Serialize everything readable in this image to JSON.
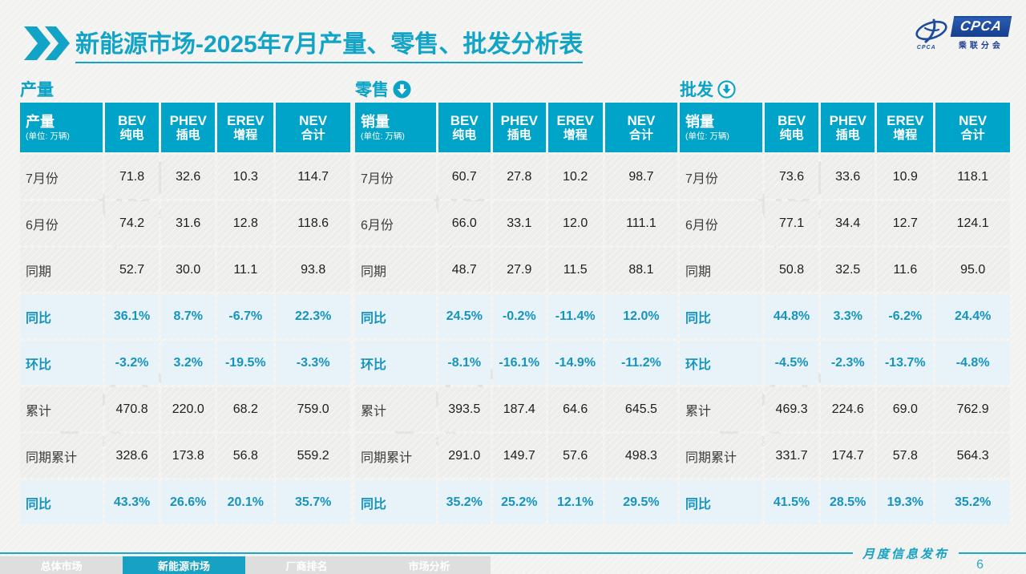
{
  "header": {
    "title_bold": "新能源市场",
    "title_rest": "-2025年7月产量、零售、批发分析表",
    "logo": {
      "emblem_text": "CPCA",
      "box_text": "CPCA",
      "sub_text": "乘联分会"
    }
  },
  "watermark": {
    "big": "CPCA",
    "small": "乘联分会"
  },
  "colors": {
    "accent": "#00a4c8",
    "percent_text": "#1694bd",
    "percent_bg": "#e8f3f9",
    "logo_blue": "#1e4b9c"
  },
  "tables": [
    {
      "section_title": "产量",
      "arrow": "none",
      "first_col": {
        "title": "产量",
        "unit": "(单位: 万辆)"
      },
      "columns": [
        {
          "en": "BEV",
          "cn": "纯电"
        },
        {
          "en": "PHEV",
          "cn": "插电"
        },
        {
          "en": "EREV",
          "cn": "增程"
        },
        {
          "en": "NEV",
          "cn": "合计"
        }
      ],
      "rows": [
        {
          "label": "7月份",
          "type": "value",
          "cells": [
            "71.8",
            "32.6",
            "10.3",
            "114.7"
          ]
        },
        {
          "label": "6月份",
          "type": "value",
          "cells": [
            "74.2",
            "31.6",
            "12.8",
            "118.6"
          ]
        },
        {
          "label": "同期",
          "type": "value",
          "cells": [
            "52.7",
            "30.0",
            "11.1",
            "93.8"
          ]
        },
        {
          "label": "同比",
          "type": "percent",
          "cells": [
            "36.1%",
            "8.7%",
            "-6.7%",
            "22.3%"
          ]
        },
        {
          "label": "环比",
          "type": "percent",
          "cells": [
            "-3.2%",
            "3.2%",
            "-19.5%",
            "-3.3%"
          ]
        },
        {
          "label": "累计",
          "type": "value",
          "cells": [
            "470.8",
            "220.0",
            "68.2",
            "759.0"
          ]
        },
        {
          "label": "同期累计",
          "type": "value",
          "cells": [
            "328.6",
            "173.8",
            "56.8",
            "559.2"
          ]
        },
        {
          "label": "同比",
          "type": "percent",
          "cells": [
            "43.3%",
            "26.6%",
            "20.1%",
            "35.7%"
          ]
        }
      ]
    },
    {
      "section_title": "零售",
      "arrow": "filled",
      "first_col": {
        "title": "销量",
        "unit": "(单位: 万辆)"
      },
      "columns": [
        {
          "en": "BEV",
          "cn": "纯电"
        },
        {
          "en": "PHEV",
          "cn": "插电"
        },
        {
          "en": "EREV",
          "cn": "增程"
        },
        {
          "en": "NEV",
          "cn": "合计"
        }
      ],
      "rows": [
        {
          "label": "7月份",
          "type": "value",
          "cells": [
            "60.7",
            "27.8",
            "10.2",
            "98.7"
          ]
        },
        {
          "label": "6月份",
          "type": "value",
          "cells": [
            "66.0",
            "33.1",
            "12.0",
            "111.1"
          ]
        },
        {
          "label": "同期",
          "type": "value",
          "cells": [
            "48.7",
            "27.9",
            "11.5",
            "88.1"
          ]
        },
        {
          "label": "同比",
          "type": "percent",
          "cells": [
            "24.5%",
            "-0.2%",
            "-11.4%",
            "12.0%"
          ]
        },
        {
          "label": "环比",
          "type": "percent",
          "cells": [
            "-8.1%",
            "-16.1%",
            "-14.9%",
            "-11.2%"
          ]
        },
        {
          "label": "累计",
          "type": "value",
          "cells": [
            "393.5",
            "187.4",
            "64.6",
            "645.5"
          ]
        },
        {
          "label": "同期累计",
          "type": "value",
          "cells": [
            "291.0",
            "149.7",
            "57.6",
            "498.3"
          ]
        },
        {
          "label": "同比",
          "type": "percent",
          "cells": [
            "35.2%",
            "25.2%",
            "12.1%",
            "29.5%"
          ]
        }
      ]
    },
    {
      "section_title": "批发",
      "arrow": "outline",
      "first_col": {
        "title": "销量",
        "unit": "(单位: 万辆)"
      },
      "columns": [
        {
          "en": "BEV",
          "cn": "纯电"
        },
        {
          "en": "PHEV",
          "cn": "插电"
        },
        {
          "en": "EREV",
          "cn": "增程"
        },
        {
          "en": "NEV",
          "cn": "合计"
        }
      ],
      "rows": [
        {
          "label": "7月份",
          "type": "value",
          "cells": [
            "73.6",
            "33.6",
            "10.9",
            "118.1"
          ]
        },
        {
          "label": "6月份",
          "type": "value",
          "cells": [
            "77.1",
            "34.4",
            "12.7",
            "124.1"
          ]
        },
        {
          "label": "同期",
          "type": "value",
          "cells": [
            "50.8",
            "32.5",
            "11.6",
            "95.0"
          ]
        },
        {
          "label": "同比",
          "type": "percent",
          "cells": [
            "44.8%",
            "3.3%",
            "-6.2%",
            "24.4%"
          ]
        },
        {
          "label": "环比",
          "type": "percent",
          "cells": [
            "-4.5%",
            "-2.3%",
            "-13.7%",
            "-4.8%"
          ]
        },
        {
          "label": "累计",
          "type": "value",
          "cells": [
            "469.3",
            "224.6",
            "69.0",
            "762.9"
          ]
        },
        {
          "label": "同期累计",
          "type": "value",
          "cells": [
            "331.7",
            "174.7",
            "57.8",
            "564.3"
          ]
        },
        {
          "label": "同比",
          "type": "percent",
          "cells": [
            "41.5%",
            "28.5%",
            "19.3%",
            "35.2%"
          ]
        }
      ]
    }
  ],
  "footer": {
    "note": "月度信息发布",
    "page_number": "6",
    "tabs": [
      {
        "label": "总体市场",
        "active": false
      },
      {
        "label": "新能源市场",
        "active": true
      },
      {
        "label": "厂商排名",
        "active": false
      },
      {
        "label": "市场分析",
        "active": false
      }
    ]
  }
}
